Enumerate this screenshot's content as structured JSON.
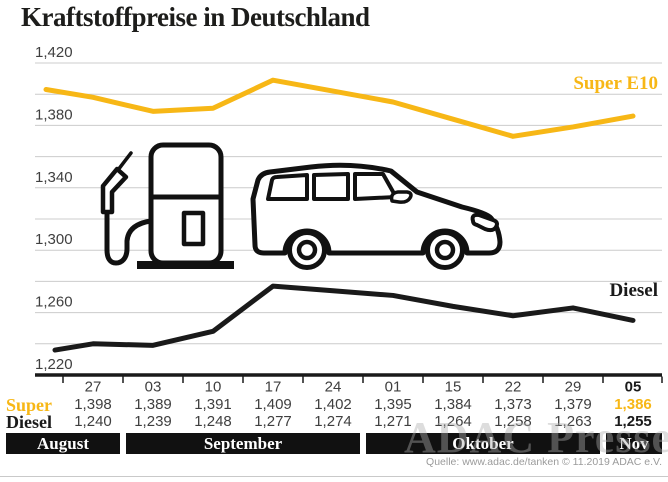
{
  "title": "Kraftstoffpreise in Deutschland",
  "source": "Quelle: www.adac.de/tanken  © 11.2019 ADAC e.V.",
  "watermark": "ADAC Presse",
  "colors": {
    "super_yellow": "#F7B716",
    "diesel_black": "#1A1A1A",
    "grid": "#CCCCCC",
    "axis": "#1A1A1A",
    "tick_text": "#3F3F3F",
    "month_bar_bg": "#111111",
    "month_bar_text": "#FFFFFF",
    "source_text": "#9B9B9B"
  },
  "icons": [
    "fuel-pump-icon",
    "car-icon"
  ],
  "chart_data": {
    "type": "line",
    "title": "Kraftstoffpreise in Deutschland",
    "x_tick_labels": [
      "27",
      "03",
      "10",
      "17",
      "24",
      "01",
      "15",
      "22",
      "29",
      "05"
    ],
    "x_tick_bold_index": 9,
    "y_tick_labels": [
      "1,420",
      "1,380",
      "1,340",
      "1,300",
      "1,260",
      "1,220"
    ],
    "y_tick_values": [
      1420,
      1380,
      1340,
      1300,
      1260,
      1220
    ],
    "ylim": [
      1220,
      1420
    ],
    "grid_step": 20,
    "grid": true,
    "legend_position": "inline-right",
    "series": [
      {
        "name": "Super E10",
        "color": "#F7B716",
        "values": [
          1398,
          1389,
          1391,
          1409,
          1402,
          1395,
          1384,
          1373,
          1379,
          1386
        ],
        "lead_in_value_estimated": 1403
      },
      {
        "name": "Diesel",
        "color": "#1A1A1A",
        "values": [
          1240,
          1239,
          1248,
          1277,
          1274,
          1271,
          1264,
          1258,
          1263,
          1255
        ],
        "lead_in_value_estimated": 1236
      }
    ],
    "months": [
      {
        "label": "August",
        "from_col": 0,
        "to_col": 0
      },
      {
        "label": "September",
        "from_col": 1,
        "to_col": 4
      },
      {
        "label": "Oktober",
        "from_col": 5,
        "to_col": 8
      },
      {
        "label": "Nov",
        "from_col": 9,
        "to_col": 9
      }
    ]
  },
  "table": {
    "rows": [
      {
        "label": "Super",
        "color": "#F7B716",
        "values": [
          "1,398",
          "1,389",
          "1,391",
          "1,409",
          "1,402",
          "1,395",
          "1,384",
          "1,373",
          "1,379",
          "1,386"
        ]
      },
      {
        "label": "Diesel",
        "color": "#1A1A1A",
        "values": [
          "1,240",
          "1,239",
          "1,248",
          "1,277",
          "1,274",
          "1,271",
          "1,264",
          "1,258",
          "1,263",
          "1,255"
        ]
      }
    ],
    "highlight_last_column": true
  }
}
